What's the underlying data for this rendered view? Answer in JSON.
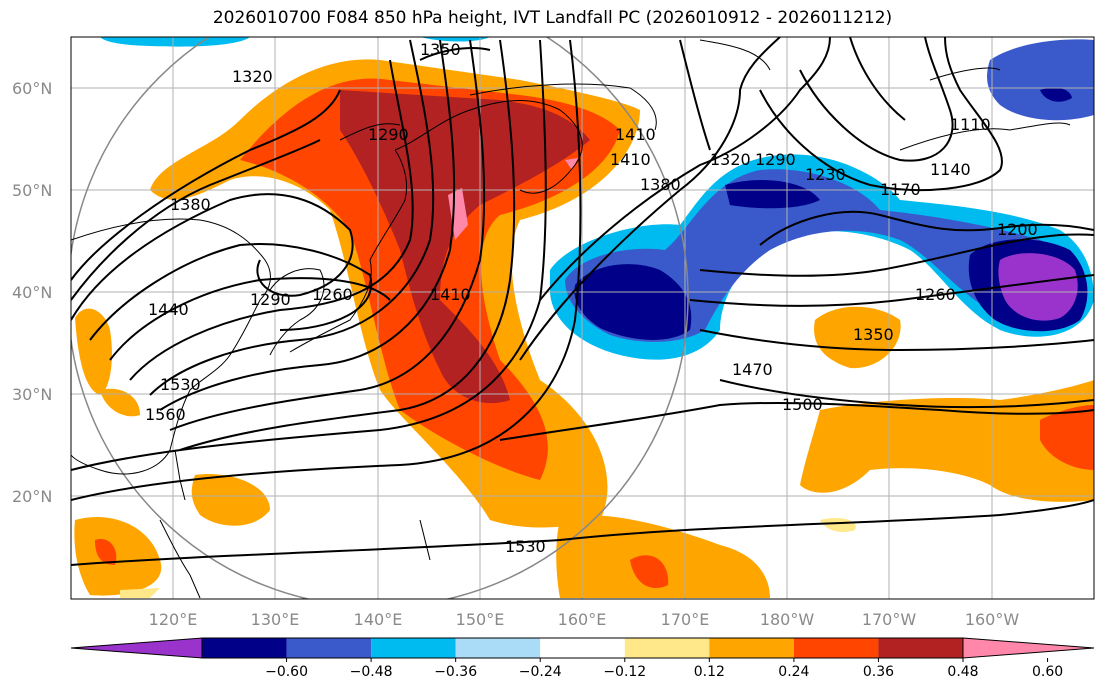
{
  "title": "2026010700 F084 850 hPa height, IVT Landfall PC (2026010912 - 2026011212)",
  "lat_labels": [
    "60°N",
    "50°N",
    "40°N",
    "30°N",
    "20°N"
  ],
  "lon_labels": [
    "120°E",
    "130°E",
    "140°E",
    "150°E",
    "160°E",
    "170°E",
    "180°W",
    "170°W",
    "160°W"
  ],
  "contour_labels": [
    "1320",
    "1350",
    "1290",
    "1380",
    "1410",
    "1260",
    "1290",
    "1410",
    "1440",
    "1530",
    "1560",
    "1380",
    "1410",
    "1320",
    "1290",
    "1230",
    "1170",
    "1140",
    "1110",
    "1200",
    "1260",
    "1350",
    "1470",
    "1500",
    "1530"
  ],
  "colorbar": {
    "ticks": [
      "−0.60",
      "−0.48",
      "−0.36",
      "−0.24",
      "−0.12",
      "0.12",
      "0.24",
      "0.36",
      "0.48",
      "0.60"
    ],
    "colors": [
      "#9933cc",
      "#000088",
      "#3a5acc",
      "#00bbf0",
      "#aadcf8",
      "#ffffff",
      "#ffe88a",
      "#ffa500",
      "#ff4500",
      "#b22222",
      "#ff88aa"
    ]
  },
  "chart_data": {
    "type": "map",
    "variable": "850 hPa height (contours) and IVT Landfall PC (shading)",
    "lon_range": [
      "110°E",
      "150°W"
    ],
    "lat_range": [
      "10°N",
      "65°N"
    ],
    "shading_levels": [
      -0.6,
      -0.48,
      -0.36,
      -0.24,
      -0.12,
      0.12,
      0.24,
      0.36,
      0.48,
      0.6
    ],
    "contour_values": [
      1110,
      1140,
      1170,
      1200,
      1230,
      1260,
      1290,
      1320,
      1350,
      1380,
      1410,
      1440,
      1470,
      1500,
      1530,
      1560
    ]
  }
}
